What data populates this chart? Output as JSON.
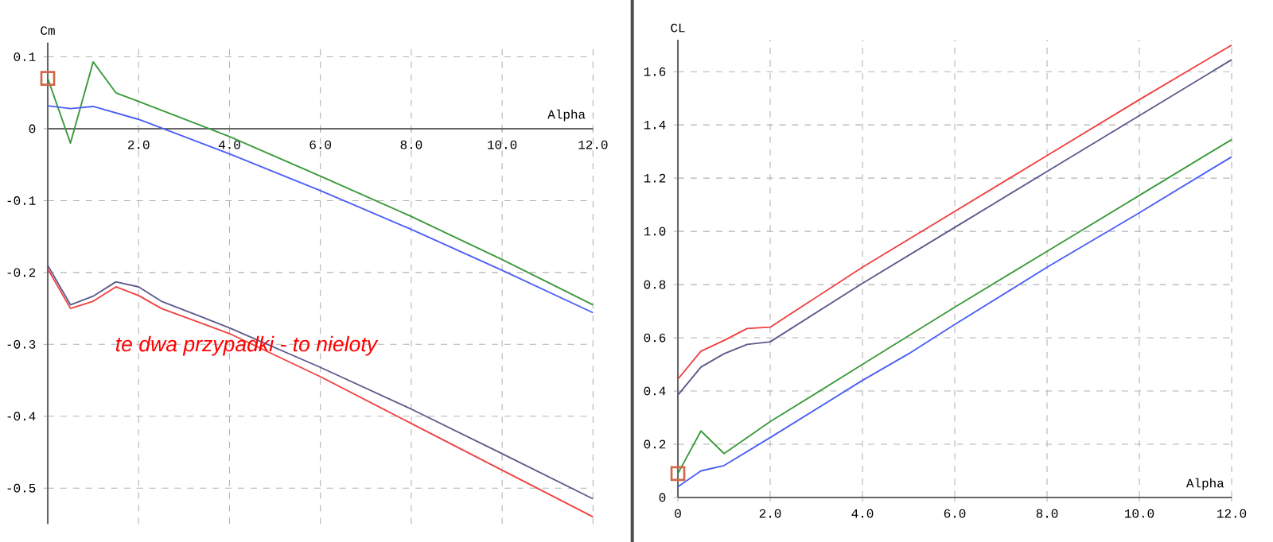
{
  "chart_data": [
    {
      "type": "line",
      "xlabel": "Alpha",
      "ylabel": "Cm",
      "xlim": [
        0,
        12
      ],
      "ylim": [
        -0.55,
        0.12
      ],
      "xticks": [
        {
          "value": 2,
          "label": "2.0"
        },
        {
          "value": 4,
          "label": "4.0"
        },
        {
          "value": 6,
          "label": "6.0"
        },
        {
          "value": 8,
          "label": "8.0"
        },
        {
          "value": 10,
          "label": "10.0"
        },
        {
          "value": 12,
          "label": "12.0"
        }
      ],
      "yticks": [
        0.1,
        0,
        -0.1,
        -0.2,
        -0.3,
        -0.4,
        -0.5
      ],
      "grid": true,
      "legend": false,
      "marker": "none",
      "line_style": "solid",
      "annotations": [
        "te dwa przypadki - to nieloty"
      ],
      "series": [
        {
          "color": "#3a9a3a",
          "x": [
            0,
            0.5,
            1,
            1.5,
            2,
            4,
            6,
            8,
            10,
            12
          ],
          "values": [
            0.07,
            -0.02,
            0.093,
            0.05,
            0.038,
            -0.011,
            -0.066,
            -0.122,
            -0.182,
            -0.245
          ]
        },
        {
          "color": "#4a5ff7",
          "x": [
            0,
            0.5,
            1,
            2,
            4,
            6,
            8,
            10,
            12
          ],
          "values": [
            0.032,
            0.028,
            0.031,
            0.013,
            -0.035,
            -0.086,
            -0.14,
            -0.197,
            -0.256
          ]
        },
        {
          "color": "#5c5a8c",
          "x": [
            0,
            0.5,
            1,
            1.5,
            2,
            2.5,
            4,
            6,
            8,
            10,
            12
          ],
          "values": [
            -0.19,
            -0.245,
            -0.233,
            -0.213,
            -0.22,
            -0.24,
            -0.277,
            -0.332,
            -0.39,
            -0.452,
            -0.515
          ]
        },
        {
          "color": "#f04040",
          "x": [
            0,
            0.5,
            1,
            1.5,
            2,
            2.5,
            4,
            6,
            8,
            10,
            12
          ],
          "values": [
            -0.195,
            -0.25,
            -0.24,
            -0.22,
            -0.232,
            -0.25,
            -0.285,
            -0.345,
            -0.41,
            -0.475,
            -0.54
          ]
        },
        {
          "type": "scatter",
          "marker": "square",
          "color": "#d0684a",
          "x": [
            0
          ],
          "values": [
            0.07
          ]
        }
      ]
    },
    {
      "type": "line",
      "xlabel": "Alpha",
      "ylabel": "CL",
      "xlim": [
        0,
        12
      ],
      "ylim": [
        0,
        1.72
      ],
      "xticks": [
        0,
        {
          "value": 2,
          "label": "2.0"
        },
        {
          "value": 4,
          "label": "4.0"
        },
        {
          "value": 6,
          "label": "6.0"
        },
        {
          "value": 8,
          "label": "8.0"
        },
        {
          "value": 10,
          "label": "10.0"
        },
        {
          "value": 12,
          "label": "12.0"
        }
      ],
      "yticks": [
        0,
        0.2,
        0.4,
        0.6,
        0.8,
        {
          "value": 1,
          "label": "1.0"
        },
        1.2,
        1.4,
        1.6
      ],
      "grid": true,
      "legend": false,
      "marker": "none",
      "line_style": "solid",
      "series": [
        {
          "color": "#f04040",
          "x": [
            0,
            0.5,
            1,
            1.5,
            2,
            4,
            6,
            8,
            10,
            12
          ],
          "values": [
            0.445,
            0.55,
            0.59,
            0.635,
            0.64,
            0.865,
            1.075,
            1.285,
            1.495,
            1.7
          ]
        },
        {
          "color": "#5c5a8c",
          "x": [
            0,
            0.5,
            1,
            1.5,
            2,
            4,
            6,
            8,
            10,
            12
          ],
          "values": [
            0.385,
            0.49,
            0.54,
            0.575,
            0.585,
            0.805,
            1.015,
            1.225,
            1.435,
            1.645
          ]
        },
        {
          "color": "#3a9a3a",
          "x": [
            0,
            0.5,
            1,
            2,
            4,
            6,
            8,
            10,
            12
          ],
          "values": [
            0.09,
            0.25,
            0.165,
            0.285,
            0.5,
            0.715,
            0.925,
            1.135,
            1.345
          ]
        },
        {
          "color": "#4a5ff7",
          "x": [
            0,
            0.5,
            1,
            2,
            4,
            5,
            6,
            8,
            10,
            12
          ],
          "values": [
            0.04,
            0.1,
            0.12,
            0.225,
            0.44,
            0.54,
            0.65,
            0.865,
            1.07,
            1.28
          ]
        },
        {
          "type": "scatter",
          "marker": "square",
          "color": "#d0684a",
          "x": [
            0
          ],
          "values": [
            0.09
          ]
        }
      ]
    }
  ]
}
